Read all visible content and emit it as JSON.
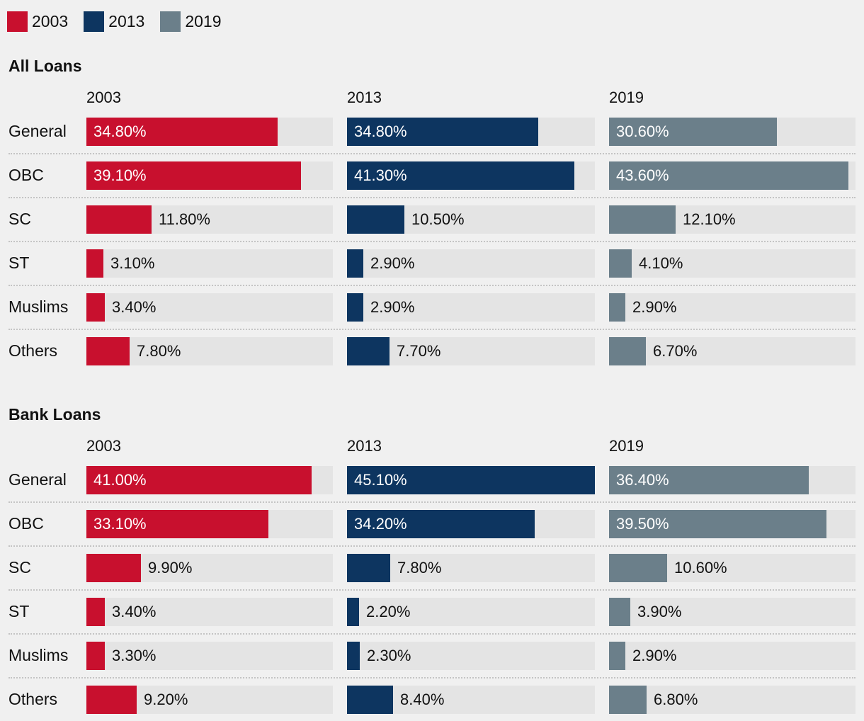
{
  "legend": [
    {
      "label": "2003",
      "color": "#c8102e"
    },
    {
      "label": "2013",
      "color": "#0d3560"
    },
    {
      "label": "2019",
      "color": "#6b7f8a"
    }
  ],
  "chart_data": [
    {
      "type": "bar",
      "title": "All Loans",
      "unit": "%",
      "categories": [
        "General",
        "OBC",
        "SC",
        "ST",
        "Muslims",
        "Others"
      ],
      "series": [
        {
          "name": "2003",
          "color": "#c8102e",
          "values": [
            34.8,
            39.1,
            11.8,
            3.1,
            3.4,
            7.8
          ],
          "labels": [
            "34.80%",
            "39.10%",
            "11.80%",
            "3.10%",
            "3.40%",
            "7.80%"
          ]
        },
        {
          "name": "2013",
          "color": "#0d3560",
          "values": [
            34.8,
            41.3,
            10.5,
            2.9,
            2.9,
            7.7
          ],
          "labels": [
            "34.80%",
            "41.30%",
            "10.50%",
            "2.90%",
            "2.90%",
            "7.70%"
          ]
        },
        {
          "name": "2019",
          "color": "#6b7f8a",
          "values": [
            30.6,
            43.6,
            12.1,
            4.1,
            2.9,
            6.7
          ],
          "labels": [
            "30.60%",
            "43.60%",
            "12.10%",
            "4.10%",
            "2.90%",
            "6.70%"
          ]
        }
      ],
      "xlim": [
        0,
        45
      ]
    },
    {
      "type": "bar",
      "title": "Bank Loans",
      "unit": "%",
      "categories": [
        "General",
        "OBC",
        "SC",
        "ST",
        "Muslims",
        "Others"
      ],
      "series": [
        {
          "name": "2003",
          "color": "#c8102e",
          "values": [
            41.0,
            33.1,
            9.9,
            3.4,
            3.3,
            9.2
          ],
          "labels": [
            "41.00%",
            "33.10%",
            "9.90%",
            "3.40%",
            "3.30%",
            "9.20%"
          ]
        },
        {
          "name": "2013",
          "color": "#0d3560",
          "values": [
            45.1,
            34.2,
            7.8,
            2.2,
            2.3,
            8.4
          ],
          "labels": [
            "45.10%",
            "34.20%",
            "7.80%",
            "2.20%",
            "2.30%",
            "8.40%"
          ]
        },
        {
          "name": "2019",
          "color": "#6b7f8a",
          "values": [
            36.4,
            39.5,
            10.6,
            3.9,
            2.9,
            6.8
          ],
          "labels": [
            "36.40%",
            "39.50%",
            "10.60%",
            "3.90%",
            "2.90%",
            "6.80%"
          ]
        }
      ],
      "xlim": [
        0,
        45
      ]
    }
  ]
}
